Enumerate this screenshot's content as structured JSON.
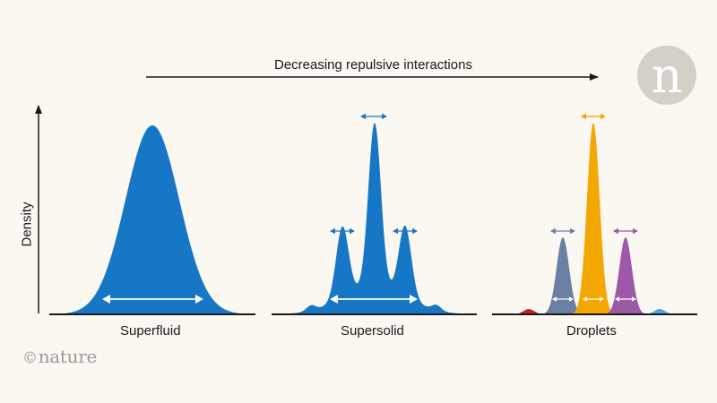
{
  "title": "Decreasing repulsive interactions",
  "y_axis_label": "Density",
  "panels": [
    {
      "name": "Superfluid"
    },
    {
      "name": "Supersolid"
    },
    {
      "name": "Droplets"
    }
  ],
  "brand": {
    "wordmark": "nature",
    "copyright_symbol": "©",
    "logo_letter": "n"
  },
  "colors": {
    "blue": "#1577c6",
    "slate": "#6a7fa3",
    "orange": "#f4a700",
    "purple": "#9d58a8",
    "red": "#c1202b",
    "light_blue": "#44a9df",
    "axis": "#1a1a1a",
    "logo_circle": "#d3d0c7",
    "background": "#fbf8f1"
  }
}
